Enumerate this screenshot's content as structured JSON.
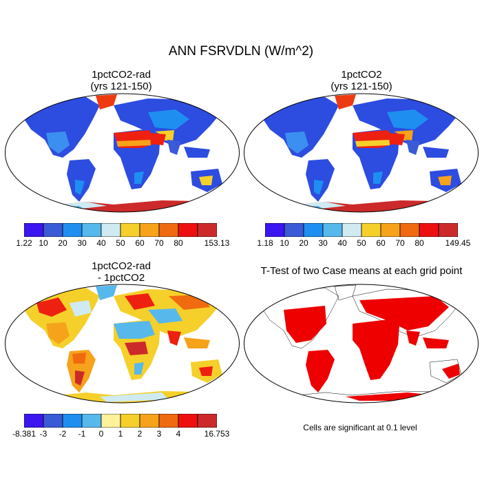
{
  "title": "ANN FSRVDLN (W/m^2)",
  "panels": [
    {
      "title_line1": "1pctCO2-rad",
      "title_line2": "(yrs 121-150)"
    },
    {
      "title_line1": "1pctCO2",
      "title_line2": "(yrs 121-150)"
    },
    {
      "title_line1": "1pctCO2-rad",
      "title_line2": "- 1pctCO2"
    },
    {
      "title_line1": "T-Test of two Case means at each grid point",
      "title_line2": ""
    }
  ],
  "colorbars": [
    {
      "colors": [
        "#3b16f0",
        "#3a5ad6",
        "#1e8ff0",
        "#57b8ec",
        "#cfeaf0",
        "#f5d02a",
        "#f6a21a",
        "#f06a10",
        "#ee1010",
        "#cc2a2a"
      ],
      "labels": [
        "1.22",
        "10",
        "20",
        "30",
        "40",
        "50",
        "60",
        "70",
        "80",
        "153.13"
      ]
    },
    {
      "colors": [
        "#3b16f0",
        "#3a5ad6",
        "#1e8ff0",
        "#57b8ec",
        "#cfeaf0",
        "#f5d02a",
        "#f6a21a",
        "#f06a10",
        "#ee1010",
        "#cc2a2a"
      ],
      "labels": [
        "1.18",
        "10",
        "20",
        "30",
        "40",
        "50",
        "60",
        "70",
        "80",
        "149.45"
      ]
    },
    {
      "colors": [
        "#3b16f0",
        "#3a5ad6",
        "#1e8ff0",
        "#57b8ec",
        "#fff29a",
        "#f5d02a",
        "#f6a21a",
        "#f06a10",
        "#ee1010",
        "#cc2a2a"
      ],
      "labels": [
        "-8.381",
        "-3",
        "-2",
        "-1",
        "0",
        "1",
        "2",
        "3",
        "4",
        "16.753"
      ]
    }
  ],
  "significance_note": "Cells are significant at 0.1 level",
  "significance_color": "#ee0000"
}
